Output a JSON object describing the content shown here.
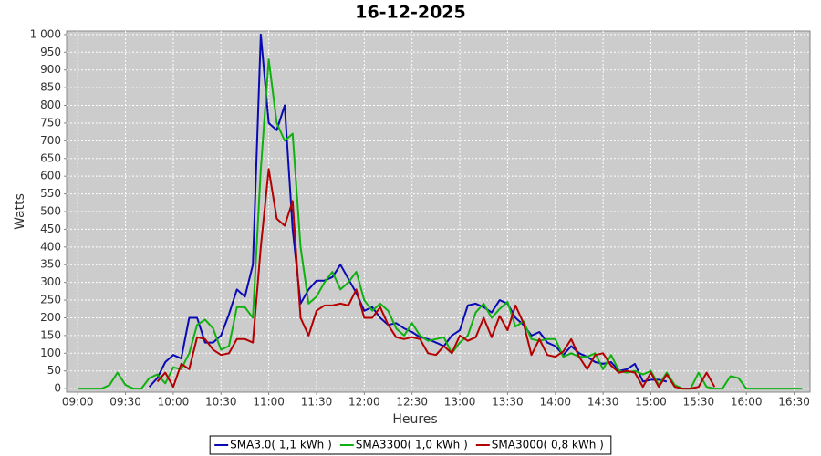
{
  "chart_data": {
    "type": "line",
    "title": "16-12-2025",
    "x_label": "Heures",
    "y_label": "Watts",
    "x": [
      "09:00",
      "09:05",
      "09:10",
      "09:15",
      "09:20",
      "09:25",
      "09:30",
      "09:35",
      "09:40",
      "09:45",
      "09:50",
      "09:55",
      "10:00",
      "10:05",
      "10:10",
      "10:15",
      "10:20",
      "10:25",
      "10:30",
      "10:35",
      "10:40",
      "10:45",
      "10:50",
      "10:55",
      "11:00",
      "11:05",
      "11:10",
      "11:15",
      "11:20",
      "11:25",
      "11:30",
      "11:35",
      "11:40",
      "11:45",
      "11:50",
      "11:55",
      "12:00",
      "12:05",
      "12:10",
      "12:15",
      "12:20",
      "12:25",
      "12:30",
      "12:35",
      "12:40",
      "12:45",
      "12:50",
      "12:55",
      "13:00",
      "13:05",
      "13:10",
      "13:15",
      "13:20",
      "13:25",
      "13:30",
      "13:35",
      "13:40",
      "13:45",
      "13:50",
      "13:55",
      "14:00",
      "14:05",
      "14:10",
      "14:15",
      "14:20",
      "14:25",
      "14:30",
      "14:35",
      "14:40",
      "14:45",
      "14:50",
      "14:55",
      "15:00",
      "15:05",
      "15:10",
      "15:15",
      "15:20",
      "15:25",
      "15:30",
      "15:35",
      "15:40",
      "15:45",
      "15:50",
      "15:55",
      "16:00",
      "16:05",
      "16:10",
      "16:15",
      "16:20",
      "16:25",
      "16:30",
      "16:35"
    ],
    "series": [
      {
        "name": "SMA3.0( 1,1 kWh )",
        "color": "#0a0ab4",
        "values": [
          null,
          null,
          null,
          null,
          null,
          null,
          null,
          null,
          null,
          5,
          30,
          75,
          95,
          85,
          200,
          200,
          130,
          130,
          150,
          210,
          280,
          260,
          350,
          1000,
          750,
          730,
          800,
          450,
          240,
          280,
          305,
          305,
          315,
          350,
          310,
          270,
          220,
          230,
          200,
          180,
          185,
          170,
          160,
          145,
          140,
          130,
          120,
          150,
          165,
          235,
          240,
          230,
          215,
          250,
          240,
          200,
          180,
          150,
          160,
          130,
          120,
          95,
          120,
          100,
          90,
          75,
          70,
          75,
          50,
          55,
          70,
          20,
          25,
          25,
          20,
          null,
          null,
          null,
          null,
          null,
          null,
          null,
          null,
          null,
          null,
          null,
          null,
          null,
          null,
          null,
          null,
          null
        ]
      },
      {
        "name": "SMA3300( 1,0 kWh )",
        "color": "#10b010",
        "values": [
          0,
          0,
          0,
          0,
          10,
          45,
          10,
          0,
          0,
          30,
          40,
          15,
          60,
          55,
          100,
          180,
          195,
          170,
          110,
          120,
          230,
          230,
          200,
          620,
          930,
          750,
          700,
          720,
          400,
          240,
          260,
          300,
          330,
          280,
          300,
          330,
          250,
          220,
          240,
          220,
          170,
          150,
          185,
          150,
          135,
          140,
          145,
          100,
          130,
          150,
          215,
          240,
          200,
          225,
          245,
          175,
          190,
          140,
          135,
          140,
          140,
          90,
          100,
          90,
          90,
          100,
          55,
          95,
          50,
          45,
          50,
          40,
          50,
          10,
          45,
          10,
          0,
          0,
          45,
          5,
          0,
          0,
          35,
          30,
          0,
          0,
          0,
          0,
          0,
          0,
          0,
          0
        ]
      },
      {
        "name": "SMA3000( 0,8 kWh )",
        "color": "#b40000",
        "values": [
          null,
          null,
          null,
          null,
          null,
          null,
          null,
          null,
          null,
          null,
          20,
          45,
          5,
          70,
          55,
          145,
          140,
          110,
          95,
          100,
          140,
          140,
          130,
          400,
          620,
          480,
          460,
          530,
          200,
          150,
          220,
          235,
          235,
          240,
          235,
          280,
          200,
          200,
          230,
          180,
          145,
          140,
          145,
          140,
          100,
          95,
          120,
          100,
          150,
          135,
          145,
          200,
          145,
          205,
          165,
          235,
          185,
          95,
          140,
          95,
          90,
          105,
          140,
          90,
          55,
          95,
          100,
          65,
          45,
          50,
          45,
          5,
          45,
          5,
          40,
          5,
          0,
          0,
          5,
          45,
          5,
          null,
          null,
          null,
          null,
          null,
          null,
          null,
          null,
          null,
          null,
          null
        ]
      }
    ],
    "xlim": [
      "08:53",
      "16:40"
    ],
    "xticks": [
      "09:00",
      "09:30",
      "10:00",
      "10:30",
      "11:00",
      "11:30",
      "12:00",
      "12:30",
      "13:00",
      "13:30",
      "14:00",
      "14:30",
      "15:00",
      "15:30",
      "16:00",
      "16:30"
    ],
    "ylim": [
      -10,
      1010
    ],
    "yticks": [
      0,
      50,
      100,
      150,
      200,
      250,
      300,
      350,
      400,
      450,
      500,
      550,
      600,
      650,
      700,
      750,
      800,
      850,
      900,
      950,
      {
        "value": 1000,
        "label": "1 000"
      }
    ],
    "grid": true,
    "legend": "bottom"
  }
}
